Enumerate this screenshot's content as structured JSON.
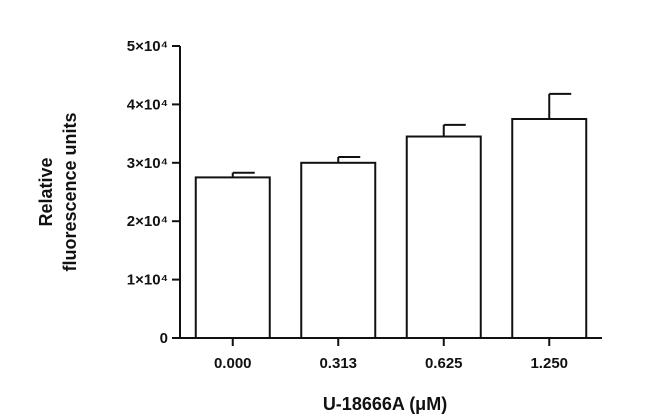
{
  "chart_data": {
    "type": "bar",
    "title": "",
    "xlabel": "U-18666A (μM)",
    "ylabel": [
      "Relative",
      "fluorescence units"
    ],
    "categories": [
      "0.000",
      "0.313",
      "0.625",
      "1.250"
    ],
    "values": [
      27500,
      30000,
      34500,
      37500
    ],
    "errors": [
      800,
      1000,
      2000,
      4300
    ],
    "ylim": [
      0,
      50000
    ],
    "yticks": [
      {
        "value": 0,
        "label": "0"
      },
      {
        "value": 10000,
        "label": "1×10⁴"
      },
      {
        "value": 20000,
        "label": "2×10⁴"
      },
      {
        "value": 30000,
        "label": "3×10⁴"
      },
      {
        "value": 40000,
        "label": "4×10⁴"
      },
      {
        "value": 50000,
        "label": "5×10⁴"
      }
    ],
    "grid": false,
    "bar_fill": "#ffffff",
    "bar_stroke": "#111111",
    "axis_color": "#111111"
  }
}
